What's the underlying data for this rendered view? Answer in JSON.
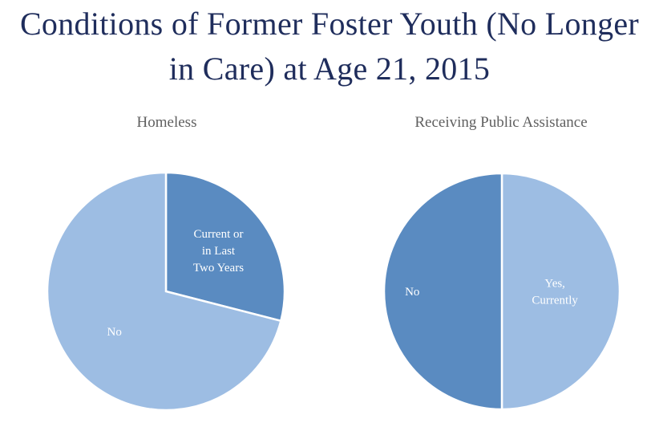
{
  "page": {
    "title_line1": "Conditions of Former Foster Youth (No Longer",
    "title_line2": "in Care) at Age 21, 2015"
  },
  "colors": {
    "title": "#1f2d5c",
    "light_blue": "#9dbde3",
    "dark_blue": "#5a8bc1",
    "chart_title": "#5f5f5f",
    "slice_label": "#ffffff"
  },
  "chart_data": [
    {
      "type": "pie",
      "title": "Homeless",
      "slices": [
        {
          "label": "Current or in Last Two Years",
          "label_lines": [
            "Current or",
            "in Last",
            "Two Years"
          ],
          "value": 29,
          "color": "#5a8bc1"
        },
        {
          "label": "No",
          "label_lines": [
            "No"
          ],
          "value": 71,
          "color": "#9dbde3"
        }
      ]
    },
    {
      "type": "pie",
      "title": "Receiving Public Assistance",
      "slices": [
        {
          "label": "Yes, Currently",
          "label_lines": [
            "Yes,",
            "Currently"
          ],
          "value": 50,
          "color": "#9dbde3"
        },
        {
          "label": "No",
          "label_lines": [
            "No"
          ],
          "value": 50,
          "color": "#5a8bc1"
        }
      ]
    }
  ]
}
